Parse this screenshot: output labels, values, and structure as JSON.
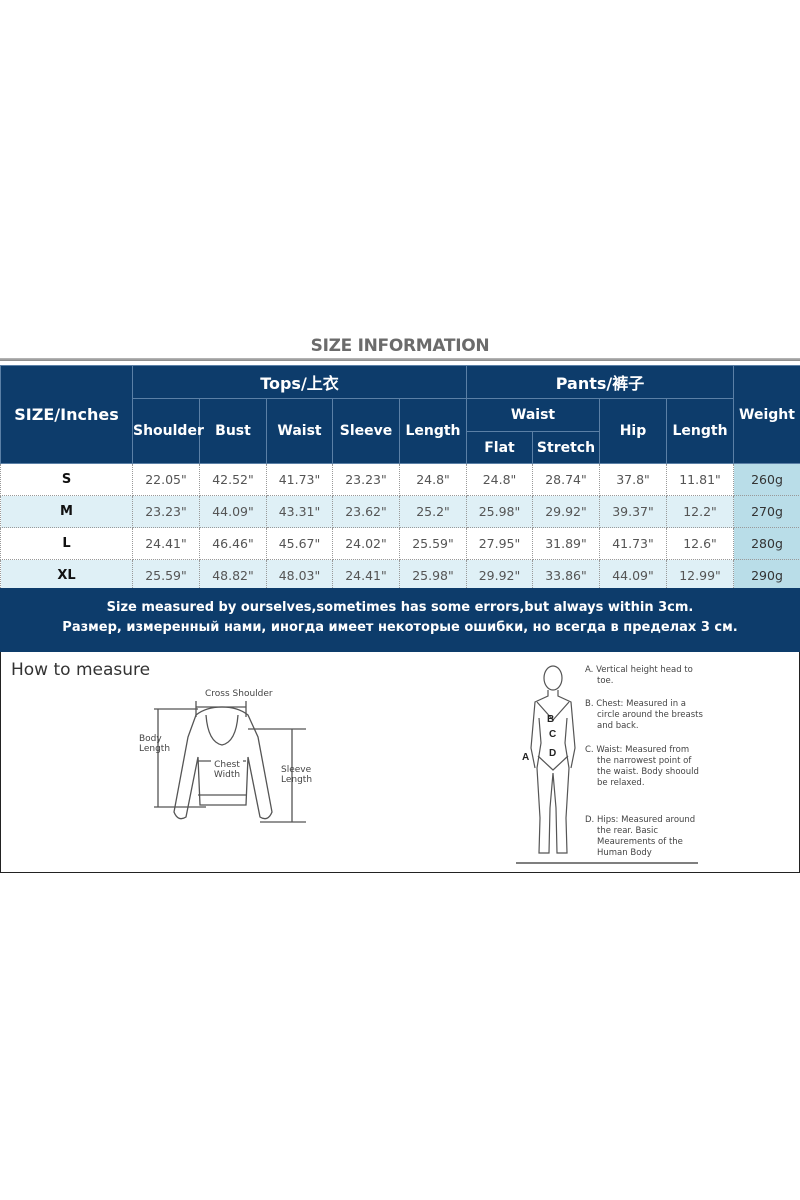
{
  "title": "SIZE INFORMATION",
  "table": {
    "size_header": "SIZE/Inches",
    "tops_header": "Tops/上衣",
    "pants_header": "Pants/裤子",
    "weight_header": "Weight",
    "tops_columns": [
      "Shoulder",
      "Bust",
      "Waist",
      "Sleeve",
      "Length"
    ],
    "pants_waist_header": "Waist",
    "pants_waist_sub": [
      "Flat",
      "Stretch"
    ],
    "pants_columns": [
      "Hip",
      "Length"
    ],
    "rows": [
      {
        "size": "S",
        "values": [
          "22.05\"",
          "42.52\"",
          "41.73\"",
          "23.23\"",
          "24.8\"",
          "24.8\"",
          "28.74\"",
          "37.8\"",
          "11.81\""
        ],
        "weight": "260g"
      },
      {
        "size": "M",
        "values": [
          "23.23\"",
          "44.09\"",
          "43.31\"",
          "23.62\"",
          "25.2\"",
          "25.98\"",
          "29.92\"",
          "39.37\"",
          "12.2\""
        ],
        "weight": "270g"
      },
      {
        "size": "L",
        "values": [
          "24.41\"",
          "46.46\"",
          "45.67\"",
          "24.02\"",
          "25.59\"",
          "27.95\"",
          "31.89\"",
          "41.73\"",
          "12.6\""
        ],
        "weight": "280g"
      },
      {
        "size": "XL",
        "values": [
          "25.59\"",
          "48.82\"",
          "48.03\"",
          "24.41\"",
          "25.98\"",
          "29.92\"",
          "33.86\"",
          "44.09\"",
          "12.99\""
        ],
        "weight": "290g"
      }
    ]
  },
  "banner": {
    "line1": "Size measured by ourselves,sometimes has some errors,but always within 3cm.",
    "line2": "Размер, измеренный нами, иногда имеет некоторые ошибки, но всегда в пределах 3 см."
  },
  "measure": {
    "heading": "How to measure",
    "shirt_labels": {
      "cross_shoulder": "Cross Shoulder",
      "body_length": "Body Length",
      "chest_width": "Chest Width",
      "sleeve_length": "Sleeve Length"
    },
    "body_letters": [
      "A",
      "B",
      "C",
      "D"
    ],
    "notes": [
      "A. Vertical height head to toe.",
      "B. Chest: Measured in a circle around the breasts and back.",
      "C. Waist: Measured from the narrowest point of the waist. Body shoould be relaxed.",
      "D. Hips: Measured around the rear. Basic Meaurements of the Human Body"
    ]
  }
}
